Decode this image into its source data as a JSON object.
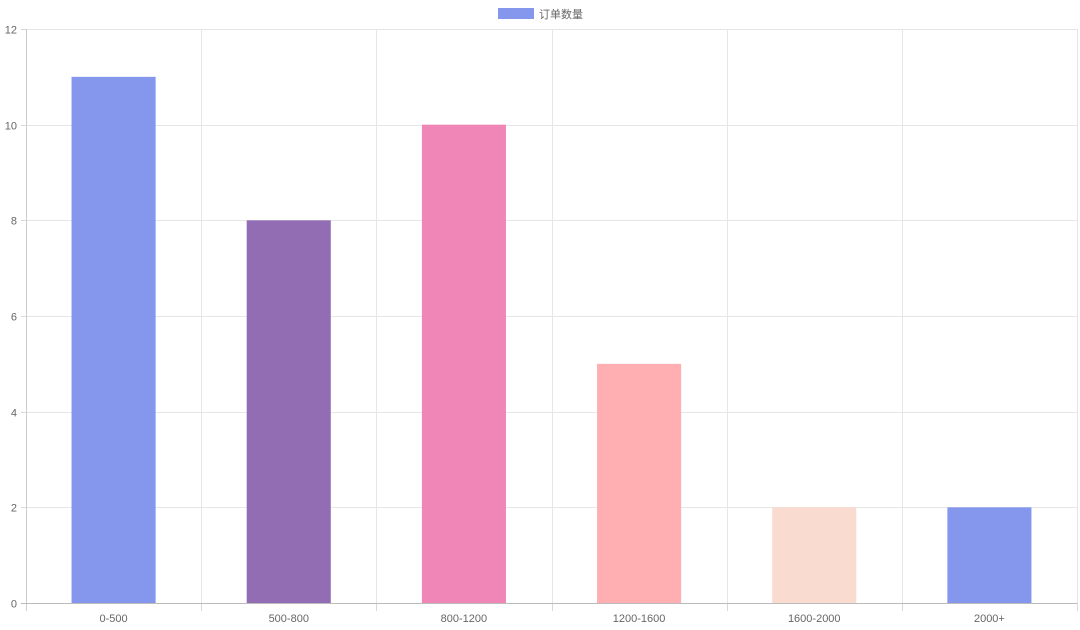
{
  "chart_data": {
    "type": "bar",
    "categories": [
      "0-500",
      "500-800",
      "800-1200",
      "1200-1600",
      "1600-2000",
      "2000+"
    ],
    "series": [
      {
        "name": "订单数量",
        "values": [
          11,
          8,
          10,
          5,
          2,
          2
        ],
        "colors": [
          "#8497ec",
          "#936db4",
          "#f085b8",
          "#ffaeb1",
          "#fadbd0",
          "#8497ec"
        ]
      }
    ],
    "ylim": [
      0,
      12
    ],
    "yticks": [
      0,
      2,
      4,
      6,
      8,
      10,
      12
    ],
    "grid": true,
    "legend": "top-center",
    "legend_color": "#8497ec"
  }
}
